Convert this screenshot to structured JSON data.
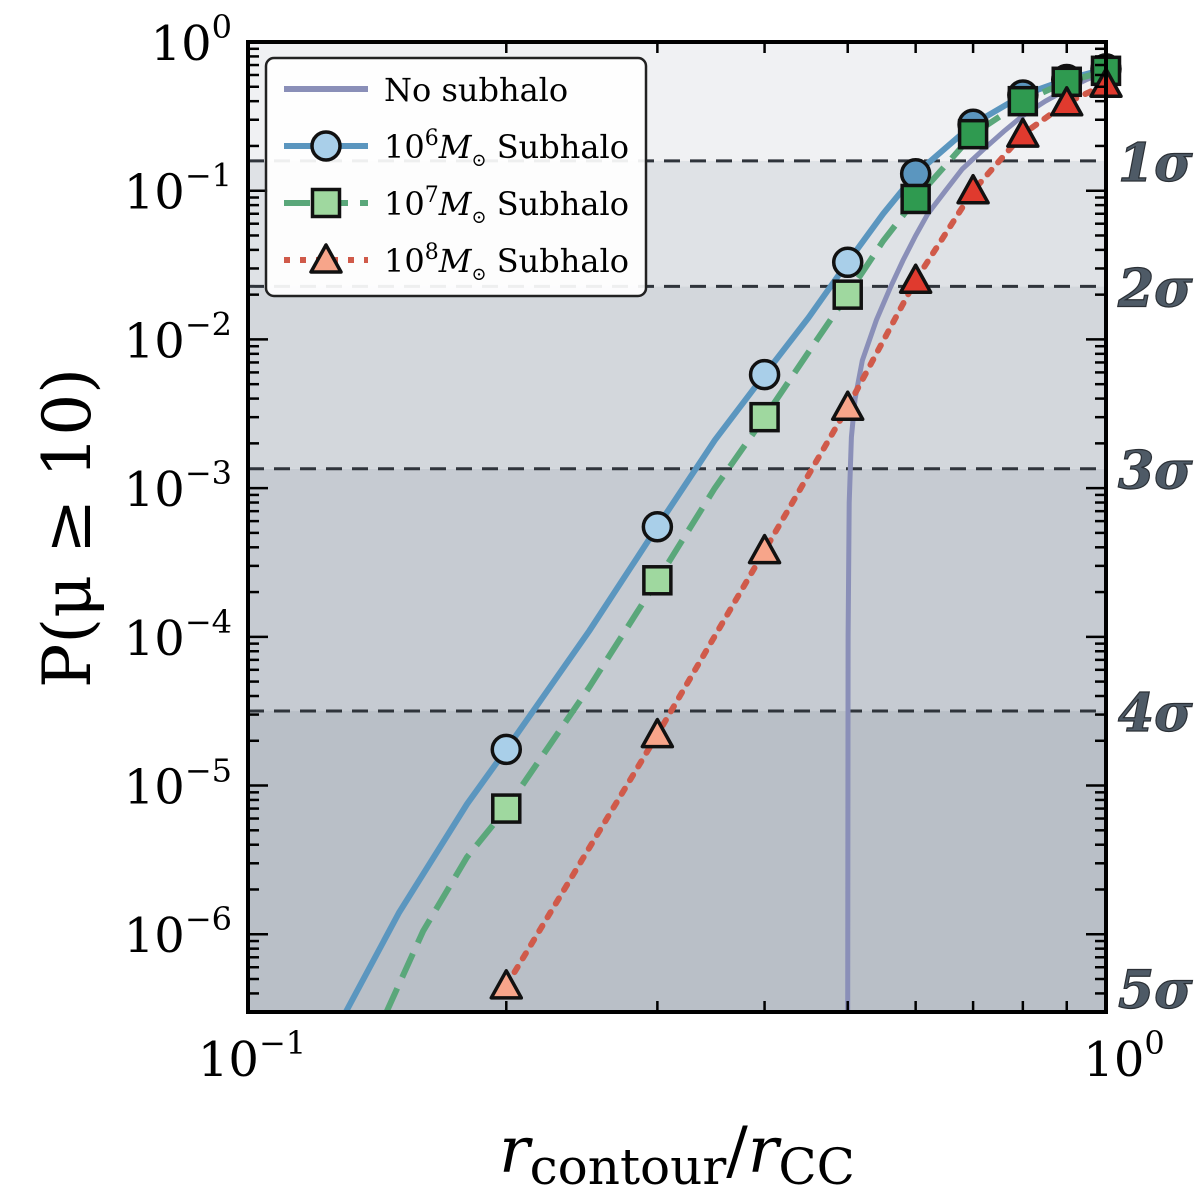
{
  "chart_data": {
    "type": "line",
    "xscale": "log",
    "yscale": "log",
    "xlim": [
      0.1,
      1.0
    ],
    "ylim": [
      3e-07,
      1.0
    ],
    "xlabel": {
      "main": "r",
      "sub1": "contour",
      "slash": "/",
      "main2": "r",
      "sub2": "CC"
    },
    "ylabel": "P(μ ≥ 10)",
    "x_ticks": [
      {
        "value": 0.1,
        "base": "10",
        "exp": "−1"
      },
      {
        "value": 1.0,
        "base": "10",
        "exp": "0"
      }
    ],
    "y_ticks": [
      {
        "value": 1.0,
        "base": "10",
        "exp": "0"
      },
      {
        "value": 0.1,
        "base": "10",
        "exp": "−1"
      },
      {
        "value": 0.01,
        "base": "10",
        "exp": "−2"
      },
      {
        "value": 0.001,
        "base": "10",
        "exp": "−3"
      },
      {
        "value": 0.0001,
        "base": "10",
        "exp": "−4"
      },
      {
        "value": 1e-05,
        "base": "10",
        "exp": "−5"
      },
      {
        "value": 1e-06,
        "base": "10",
        "exp": "−6"
      }
    ],
    "sigma_levels": [
      {
        "label": "1σ",
        "value": 0.1587,
        "shade": "#ccd1d7",
        "alpha": 0.22
      },
      {
        "label": "2σ",
        "value": 0.02275,
        "shade": "#ccd1d7",
        "alpha": 0.38
      },
      {
        "label": "3σ",
        "value": 0.00135,
        "shade": "#ccd1d7",
        "alpha": 0.55
      },
      {
        "label": "4σ",
        "value": 3.17e-05,
        "shade": "#ccd1d7",
        "alpha": 0.72
      },
      {
        "label": "5σ",
        "value": 2.87e-07,
        "shade": "#ccd1d7",
        "alpha": 1.0
      }
    ],
    "series": [
      {
        "name": "No subhalo",
        "style": "solid",
        "color": "#8a8fb8",
        "curve_x": [
          0.5,
          0.5005,
          0.502,
          0.505,
          0.51,
          0.52,
          0.54,
          0.56,
          0.58,
          0.6,
          0.62,
          0.65,
          0.68,
          0.72,
          0.76,
          0.8,
          0.85,
          0.9,
          0.95,
          1.0
        ],
        "curve_y": [
          3e-07,
          0.0001,
          0.0008,
          0.0022,
          0.004,
          0.0072,
          0.0135,
          0.022,
          0.034,
          0.05,
          0.07,
          0.1,
          0.14,
          0.19,
          0.25,
          0.32,
          0.4,
          0.48,
          0.56,
          0.63
        ],
        "points_x": [],
        "points_y": []
      },
      {
        "name": "10^6 M☉ Subhalo",
        "legend_exp": "6",
        "style": "solid",
        "color": "#5b96bf",
        "marker": "circle",
        "marker_fill": "#a9cfe9",
        "curve_x": [
          0.13,
          0.15,
          0.18,
          0.2,
          0.25,
          0.3,
          0.35,
          0.4,
          0.45,
          0.5,
          0.55,
          0.6,
          0.7,
          0.8,
          0.9,
          1.0
        ],
        "curve_y": [
          3e-07,
          1.4e-06,
          7.5e-06,
          1.75e-05,
          0.00011,
          0.00055,
          0.0021,
          0.0058,
          0.014,
          0.033,
          0.07,
          0.13,
          0.28,
          0.44,
          0.56,
          0.66
        ],
        "points_x": [
          0.2,
          0.3,
          0.4,
          0.5,
          0.6,
          0.7,
          0.8,
          0.9,
          1.0
        ],
        "points_y": [
          1.75e-05,
          0.00055,
          0.0058,
          0.033,
          0.13,
          0.28,
          0.44,
          0.56,
          0.66
        ]
      },
      {
        "name": "10^7 M☉ Subhalo",
        "legend_exp": "7",
        "style": "dashed",
        "color": "#5aa77a",
        "marker": "square",
        "marker_fill": "#9fd89f",
        "marker_fill_late": "#2f9a50",
        "curve_x": [
          0.145,
          0.16,
          0.18,
          0.2,
          0.25,
          0.3,
          0.35,
          0.4,
          0.45,
          0.5,
          0.55,
          0.6,
          0.7,
          0.8,
          0.9,
          1.0
        ],
        "curve_y": [
          3e-07,
          1.05e-06,
          3.3e-06,
          7e-06,
          4.6e-05,
          0.00024,
          0.001,
          0.003,
          0.0082,
          0.02,
          0.046,
          0.088,
          0.24,
          0.4,
          0.54,
          0.64
        ],
        "points_x": [
          0.2,
          0.3,
          0.4,
          0.5,
          0.6,
          0.7,
          0.8,
          0.9,
          1.0
        ],
        "points_y": [
          7e-06,
          0.00024,
          0.003,
          0.02,
          0.088,
          0.24,
          0.4,
          0.54,
          0.64
        ]
      },
      {
        "name": "10^8 M☉ Subhalo",
        "legend_exp": "8",
        "style": "dotted",
        "color": "#d05a4a",
        "marker": "triangle",
        "marker_fill": "#f7a58a",
        "marker_fill_late": "#e03a2e",
        "curve_x": [
          0.2,
          0.3,
          0.4,
          0.5,
          0.6,
          0.7,
          0.8,
          0.9,
          1.0
        ],
        "curve_y": [
          4.5e-07,
          2.2e-05,
          0.00038,
          0.0035,
          0.025,
          0.1,
          0.24,
          0.39,
          0.52
        ],
        "points_x": [
          0.2,
          0.3,
          0.4,
          0.5,
          0.6,
          0.7,
          0.8,
          0.9,
          1.0
        ],
        "points_y": [
          4.5e-07,
          2.2e-05,
          0.00038,
          0.0035,
          0.025,
          0.1,
          0.24,
          0.39,
          0.52
        ]
      }
    ],
    "legend": {
      "location": "top-left",
      "entries": [
        {
          "label": "No subhalo",
          "prefix": "",
          "exp": "",
          "mass": "",
          "suffix": ""
        },
        {
          "label": "10^6 M☉ Subhalo",
          "prefix": "10",
          "exp": "6",
          "mass": "M",
          "suffix": "Subhalo"
        },
        {
          "label": "10^7 M☉ Subhalo",
          "prefix": "10",
          "exp": "7",
          "mass": "M",
          "suffix": "Subhalo"
        },
        {
          "label": "10^8 M☉ Subhalo",
          "prefix": "10",
          "exp": "8",
          "mass": "M",
          "suffix": "Subhalo"
        }
      ]
    }
  }
}
